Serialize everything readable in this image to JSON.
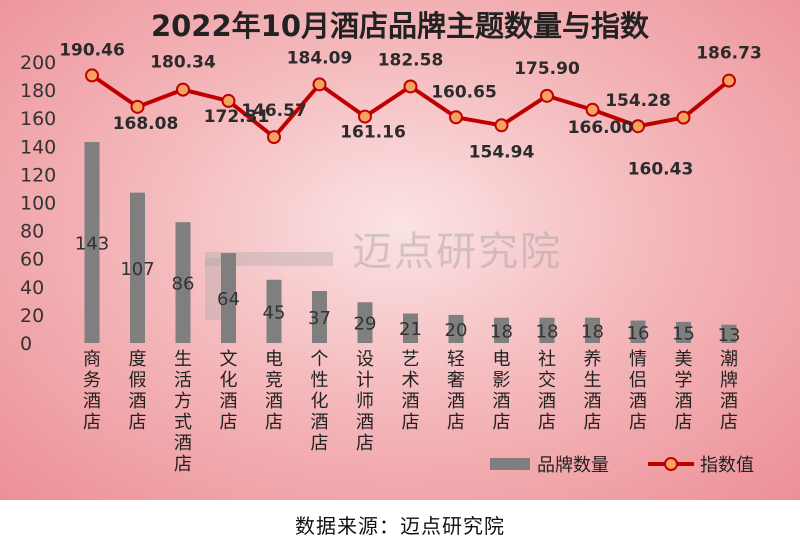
{
  "chart_data": {
    "type": "bar+line",
    "title": "2022年10月酒店品牌主题数量与指数",
    "categories": [
      "商务酒店",
      "度假酒店",
      "生活方式酒店",
      "文化酒店",
      "电竞酒店",
      "个性化酒店",
      "设计师酒店",
      "艺术酒店",
      "轻奢酒店",
      "电影酒店",
      "社交酒店",
      "养生酒店",
      "情侣酒店",
      "美学酒店",
      "潮牌酒店"
    ],
    "series": [
      {
        "name": "品牌数量",
        "type": "bar",
        "color": "#7f7f7f",
        "values": [
          143,
          107,
          86,
          64,
          45,
          37,
          29,
          21,
          20,
          18,
          18,
          18,
          16,
          15,
          13
        ]
      },
      {
        "name": "指数值",
        "type": "line",
        "color": "#c00000",
        "marker_color": "#f4a460",
        "values": [
          190.46,
          168.08,
          180.34,
          172.31,
          146.57,
          184.09,
          161.16,
          182.58,
          160.65,
          154.94,
          175.9,
          166.0,
          154.28,
          160.43,
          186.73
        ],
        "labels": [
          "190.46",
          "168.08",
          "180.34",
          "172.31",
          "146.57",
          "184.09",
          "161.16",
          "182.58",
          "160.65",
          "154.94",
          "175.90",
          "166.00",
          "154.28",
          "160.43",
          "186.73"
        ]
      }
    ],
    "yticks": [
      0,
      20,
      40,
      60,
      80,
      100,
      120,
      140,
      160,
      180,
      200
    ],
    "ylim": [
      0,
      200
    ],
    "legend": "bottom-right",
    "grid": false
  },
  "watermark": "迈点研究院",
  "source": "数据来源：迈点研究院"
}
